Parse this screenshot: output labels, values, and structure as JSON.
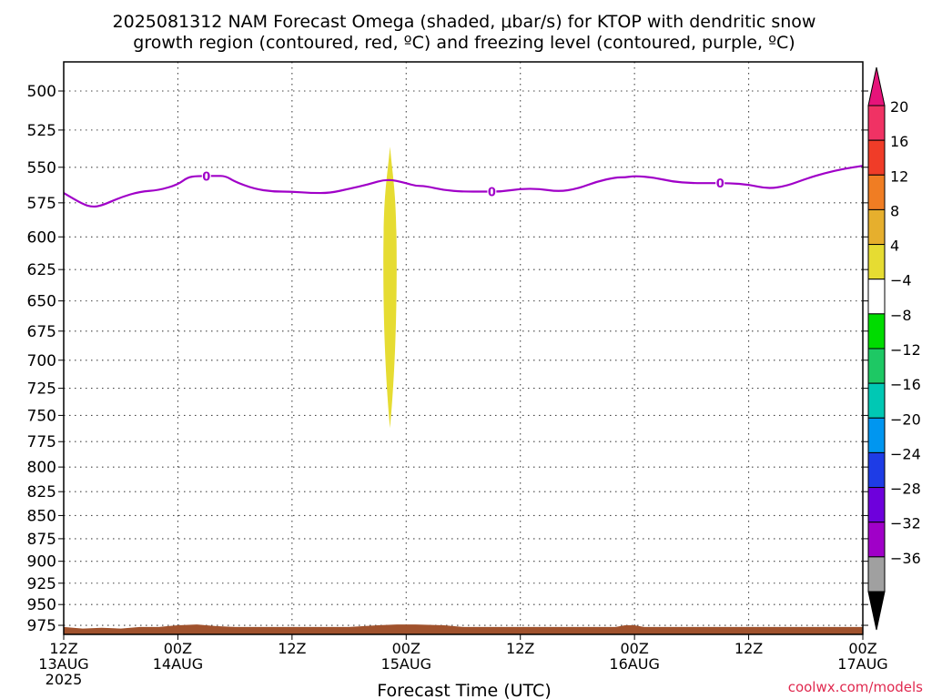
{
  "title_line1": "2025081312 NAM Forecast Omega (shaded, μbar/s) for KTOP with dendritic snow",
  "title_line2": "growth region (contoured, red, ºC) and freezing level (contoured, purple, ºC)",
  "credit": "coolwx.com/models",
  "chart_data": {
    "type": "heatmap",
    "xlabel": "Forecast Time (UTC)",
    "xlim": [
      0,
      84
    ],
    "ylim": [
      475,
      985
    ],
    "y_ticks": [
      500,
      525,
      550,
      575,
      600,
      625,
      650,
      675,
      700,
      725,
      750,
      775,
      800,
      825,
      850,
      875,
      900,
      925,
      950,
      975
    ],
    "y_tick_labels": [
      "500",
      "525",
      "550",
      "575",
      "600",
      "625",
      "650",
      "675",
      "700",
      "725",
      "750",
      "775",
      "800",
      "825",
      "850",
      "875",
      "900",
      "925",
      "950",
      "975"
    ],
    "x_ticks": [
      0,
      12,
      24,
      36,
      48,
      60,
      72,
      84
    ],
    "x_tick_labels": [
      [
        "12Z",
        "13AUG",
        "2025"
      ],
      [
        "00Z",
        "14AUG"
      ],
      [
        "12Z"
      ],
      [
        "00Z",
        "15AUG"
      ],
      [
        "12Z"
      ],
      [
        "00Z",
        "16AUG"
      ],
      [
        "12Z"
      ],
      [
        "00Z",
        "17AUG"
      ]
    ],
    "grid": true,
    "freezing_level": {
      "color": "#a000c8",
      "contour_label": "0",
      "label_hours": [
        15,
        45,
        69
      ],
      "points": [
        [
          0,
          568
        ],
        [
          2,
          576
        ],
        [
          3,
          578
        ],
        [
          4,
          577
        ],
        [
          6,
          571
        ],
        [
          8,
          567
        ],
        [
          10,
          566
        ],
        [
          12,
          562
        ],
        [
          13,
          557
        ],
        [
          14,
          556
        ],
        [
          16,
          556
        ],
        [
          17,
          556
        ],
        [
          18,
          560
        ],
        [
          20,
          565
        ],
        [
          22,
          567
        ],
        [
          24,
          567
        ],
        [
          26,
          568
        ],
        [
          28,
          568
        ],
        [
          30,
          565
        ],
        [
          32,
          562
        ],
        [
          34,
          558
        ],
        [
          36,
          561
        ],
        [
          37,
          563
        ],
        [
          38,
          563
        ],
        [
          40,
          566
        ],
        [
          42,
          567
        ],
        [
          44,
          567
        ],
        [
          46,
          567
        ],
        [
          48,
          565
        ],
        [
          50,
          565
        ],
        [
          52,
          567
        ],
        [
          54,
          565
        ],
        [
          56,
          560
        ],
        [
          58,
          557
        ],
        [
          59,
          557
        ],
        [
          60,
          556
        ],
        [
          62,
          557
        ],
        [
          64,
          560
        ],
        [
          66,
          561
        ],
        [
          68,
          561
        ],
        [
          70,
          561
        ],
        [
          72,
          562
        ],
        [
          74,
          565
        ],
        [
          76,
          563
        ],
        [
          78,
          558
        ],
        [
          80,
          554
        ],
        [
          82,
          551
        ],
        [
          84,
          549
        ]
      ]
    },
    "omega_regions": [
      {
        "value_range": [
          4,
          8
        ],
        "color": "#e6dc32",
        "hour_center": 34.3,
        "hour_halfwidth": 0.7,
        "p_top": 536,
        "p_bottom": 762
      }
    ],
    "terrain": {
      "color": "#a0522d",
      "points": [
        [
          0,
          977
        ],
        [
          2,
          979
        ],
        [
          4,
          978
        ],
        [
          6,
          979
        ],
        [
          8,
          977
        ],
        [
          10,
          977
        ],
        [
          11,
          976
        ],
        [
          12,
          975
        ],
        [
          14,
          974
        ],
        [
          15,
          975
        ],
        [
          16,
          976
        ],
        [
          18,
          977
        ],
        [
          24,
          977
        ],
        [
          30,
          977
        ],
        [
          33,
          975
        ],
        [
          35,
          974
        ],
        [
          37,
          974
        ],
        [
          40,
          975
        ],
        [
          42,
          977
        ],
        [
          48,
          977
        ],
        [
          58,
          977
        ],
        [
          59,
          975
        ],
        [
          60,
          975
        ],
        [
          61,
          977
        ],
        [
          70,
          977
        ],
        [
          84,
          977
        ]
      ]
    },
    "colorbar": {
      "labels": [
        "20",
        "16",
        "12",
        "8",
        "4",
        "−4",
        "−8",
        "−12",
        "−16",
        "−20",
        "−24",
        "−28",
        "−32",
        "−36"
      ],
      "colors": [
        "#f03264",
        "#f03c28",
        "#f07d23",
        "#e6af2d",
        "#e6dc32",
        "#ffffff",
        "#00dc00",
        "#1ec864",
        "#00c8b4",
        "#0096f0",
        "#1e3ce6",
        "#6e00dc",
        "#a000c8",
        "#a0a0a0"
      ],
      "top_arrow_color": "#e6147a",
      "bottom_arrow_color": "#000000"
    }
  }
}
